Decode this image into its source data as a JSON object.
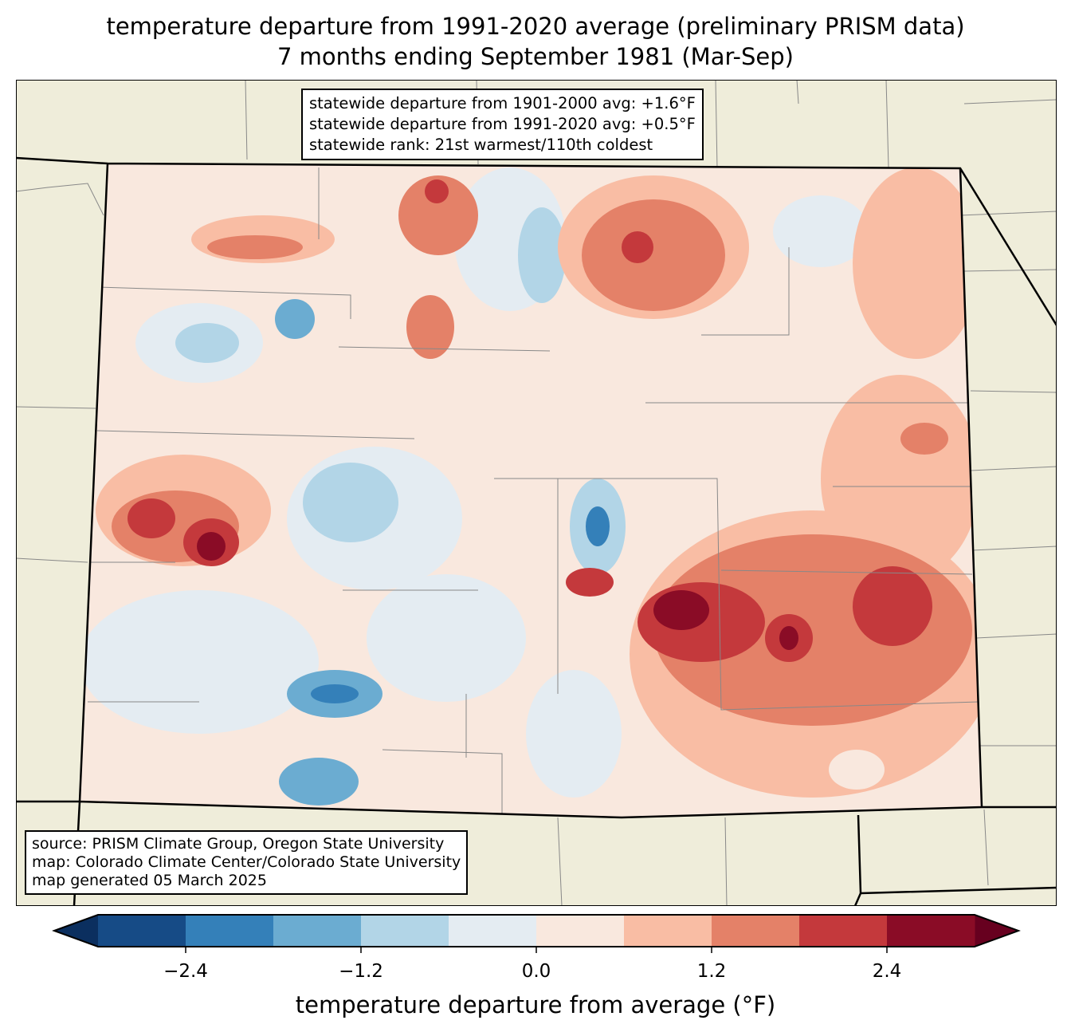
{
  "title_line1": "temperature departure from 1991-2020 average (preliminary PRISM data)",
  "title_line2": "7 months ending September 1981 (Mar-Sep)",
  "stats": {
    "line1": "statewide departure from 1901-2000 avg: +1.6°F",
    "line2": "statewide departure from 1991-2020 avg: +0.5°F",
    "line3": "statewide rank: 21st warmest/110th coldest"
  },
  "source": {
    "line1": "source: PRISM Climate Group, Oregon State University",
    "line2": "map: Colorado Climate Center/Colorado State University",
    "line3": "map generated 05 March 2025"
  },
  "colorbar": {
    "label": "temperature departure from average (°F)",
    "levels": [
      -3.0,
      -2.4,
      -1.8,
      -1.2,
      -0.6,
      0.0,
      0.6,
      1.2,
      1.8,
      2.4,
      3.0
    ],
    "colors": [
      "#164b86",
      "#3480b9",
      "#6bacd1",
      "#b2d5e7",
      "#e4ecf2",
      "#f9e8de",
      "#f9bda4",
      "#e48168",
      "#c4393c",
      "#8a0c26"
    ],
    "extend_low_color": "#0b2f5f",
    "extend_high_color": "#67001f",
    "ticks": [
      "−2.4",
      "−1.2",
      "0.0",
      "1.2",
      "2.4"
    ],
    "tick_values": [
      -2.4,
      -1.2,
      0.0,
      1.2,
      2.4
    ]
  }
}
